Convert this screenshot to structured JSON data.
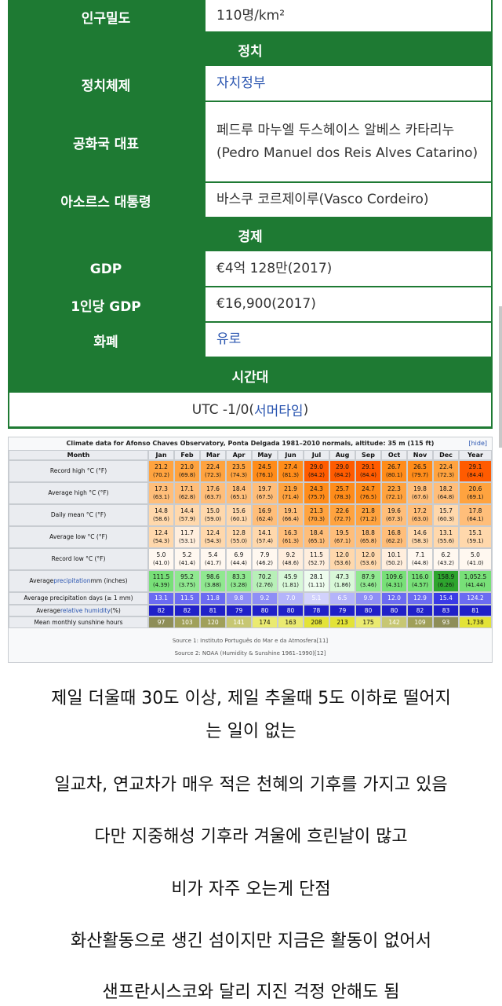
{
  "infobox": {
    "population_density": {
      "label": "인구밀도",
      "value": "110명/km²"
    },
    "section_politics": "정치",
    "political_system": {
      "label": "정치체제",
      "value": "자치정부"
    },
    "republic_representative": {
      "label": "공화국 대표",
      "value": "페드루 마누엘 두스헤이스 알베스 카타리누(Pedro Manuel dos Reis Alves Catarino)"
    },
    "azores_president": {
      "label": "아소르스 대통령",
      "value": "바스쿠 코르제이루(Vasco Cordeiro)"
    },
    "section_economy": "경제",
    "gdp": {
      "label": "GDP",
      "value": "€4억 128만(2017)"
    },
    "gdp_per_capita": {
      "label": "1인당 GDP",
      "value": "€16,900(2017)"
    },
    "currency": {
      "label": "화폐",
      "value": "유로"
    },
    "section_timezone": "시간대",
    "utc_prefix": "UTC -1/0(",
    "utc_link": "서머타임",
    "utc_suffix": ")"
  },
  "climate": {
    "caption": "Climate data for Afonso Chaves Observatory, Ponta Delgada 1981–2010 normals, altitude: 35 m (115 ft)",
    "hide_label": "[hide]",
    "header": [
      "Month",
      "Jan",
      "Feb",
      "Mar",
      "Apr",
      "May",
      "Jun",
      "Jul",
      "Aug",
      "Sep",
      "Oct",
      "Nov",
      "Dec",
      "Year"
    ],
    "rows": [
      {
        "label": "Record high °C (°F)",
        "kind": "temp",
        "values": [
          "21.2",
          "21.0",
          "22.4",
          "23.5",
          "24.5",
          "27.4",
          "29.0",
          "29.0",
          "29.1",
          "26.7",
          "26.5",
          "22.4",
          "29.1"
        ],
        "subs": [
          "(70.2)",
          "(69.8)",
          "(72.3)",
          "(74.3)",
          "(76.1)",
          "(81.3)",
          "(84.2)",
          "(84.2)",
          "(84.4)",
          "(80.1)",
          "(79.7)",
          "(72.3)",
          "(84.4)"
        ]
      },
      {
        "label": "Average high °C (°F)",
        "kind": "temp",
        "values": [
          "17.3",
          "17.1",
          "17.6",
          "18.4",
          "19.7",
          "21.9",
          "24.3",
          "25.7",
          "24.7",
          "22.3",
          "19.8",
          "18.2",
          "20.6"
        ],
        "subs": [
          "(63.1)",
          "(62.8)",
          "(63.7)",
          "(65.1)",
          "(67.5)",
          "(71.4)",
          "(75.7)",
          "(78.3)",
          "(76.5)",
          "(72.1)",
          "(67.6)",
          "(64.8)",
          "(69.1)"
        ]
      },
      {
        "label": "Daily mean °C (°F)",
        "kind": "temp",
        "values": [
          "14.8",
          "14.4",
          "15.0",
          "15.6",
          "16.9",
          "19.1",
          "21.3",
          "22.6",
          "21.8",
          "19.6",
          "17.2",
          "15.7",
          "17.8"
        ],
        "subs": [
          "(58.6)",
          "(57.9)",
          "(59.0)",
          "(60.1)",
          "(62.4)",
          "(66.4)",
          "(70.3)",
          "(72.7)",
          "(71.2)",
          "(67.3)",
          "(63.0)",
          "(60.3)",
          "(64.1)"
        ]
      },
      {
        "label": "Average low °C (°F)",
        "kind": "temp",
        "values": [
          "12.4",
          "11.7",
          "12.4",
          "12.8",
          "14.1",
          "16.3",
          "18.4",
          "19.5",
          "18.8",
          "16.8",
          "14.6",
          "13.1",
          "15.1"
        ],
        "subs": [
          "(54.3)",
          "(53.1)",
          "(54.3)",
          "(55.0)",
          "(57.4)",
          "(61.3)",
          "(65.1)",
          "(67.1)",
          "(65.8)",
          "(62.2)",
          "(58.3)",
          "(55.6)",
          "(59.1)"
        ]
      },
      {
        "label": "Record low °C (°F)",
        "kind": "temp",
        "values": [
          "5.0",
          "5.2",
          "5.4",
          "6.9",
          "7.9",
          "9.2",
          "11.5",
          "12.0",
          "12.0",
          "10.1",
          "7.1",
          "6.2",
          "5.0"
        ],
        "subs": [
          "(41.0)",
          "(41.4)",
          "(41.7)",
          "(44.4)",
          "(46.2)",
          "(48.6)",
          "(52.7)",
          "(53.6)",
          "(53.6)",
          "(50.2)",
          "(44.8)",
          "(43.2)",
          "(41.0)"
        ]
      },
      {
        "label_pre": "Average ",
        "label_link": "precipitation",
        "label_post": " mm (inches)",
        "kind": "precip",
        "values": [
          "111.5",
          "95.2",
          "98.6",
          "83.3",
          "70.2",
          "45.9",
          "28.1",
          "47.3",
          "87.9",
          "109.6",
          "116.0",
          "158.9",
          "1,052.5"
        ],
        "subs": [
          "(4.39)",
          "(3.75)",
          "(3.88)",
          "(3.28)",
          "(2.76)",
          "(1.81)",
          "(1.11)",
          "(1.86)",
          "(3.46)",
          "(4.31)",
          "(4.57)",
          "(6.26)",
          "(41.44)"
        ]
      },
      {
        "label": "Average precipitation days (≥ 1 mm)",
        "kind": "days",
        "values": [
          "13.1",
          "11.5",
          "11.8",
          "9.8",
          "9.2",
          "7.0",
          "5.1",
          "6.5",
          "9.9",
          "12.0",
          "12.9",
          "15.4",
          "124.2"
        ]
      },
      {
        "label_pre": "Average ",
        "label_link": "relative humidity",
        "label_post": " (%)",
        "kind": "humidity",
        "values": [
          "82",
          "82",
          "81",
          "79",
          "80",
          "80",
          "78",
          "79",
          "80",
          "80",
          "82",
          "83",
          "81"
        ]
      },
      {
        "label": "Mean monthly sunshine hours",
        "kind": "sun",
        "values": [
          "97",
          "103",
          "120",
          "141",
          "174",
          "163",
          "208",
          "213",
          "175",
          "142",
          "109",
          "93",
          "1,738"
        ]
      }
    ],
    "source1": "Source 1: Instituto Português do Mar e da Atmosfera[11]",
    "source2": "Source 2: NOAA (Humidity & Sunshine 1961–1990)[12]"
  },
  "text_lines": [
    "제일 더울때 30도 이상, 제일 추울때 5도 이하로 떨어지",
    "는 일이 없는",
    "일교차, 연교차가 매우 적은 천혜의 기후를 가지고 있음",
    "다만 지중해성 기후라 겨울에 흐린날이 많고",
    "비가 자주 오는게 단점",
    "화산활동으로 생긴 섬이지만 지금은 활동이 없어서",
    "샌프란시스코와 달리 지진 걱정 안해도 됨"
  ]
}
